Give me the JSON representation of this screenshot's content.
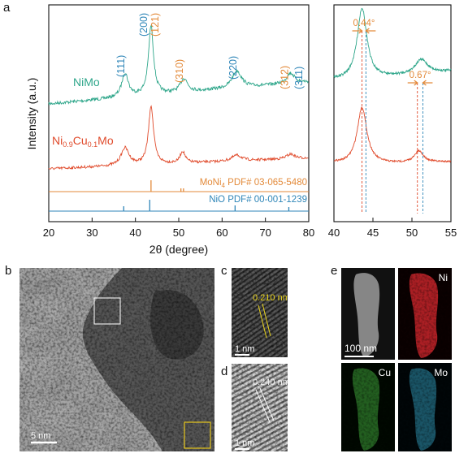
{
  "figure": {
    "panels": {
      "a": "a",
      "b": "b",
      "c": "c",
      "d": "d",
      "e": "e"
    }
  },
  "chart_data": [
    {
      "type": "line",
      "panel": "a",
      "xlabel": "2θ (degree)",
      "ylabel": "Intensity (a.u.)",
      "xlim": [
        20,
        80
      ],
      "xticks": [
        20,
        30,
        40,
        50,
        60,
        70,
        80
      ],
      "series": [
        {
          "name": "NiMo",
          "color": "#2ea68a",
          "peaks_2theta": [
            37.6,
            43.6,
            51.2,
            63.4,
            75.8
          ],
          "peak_intensity_relative": [
            0.35,
            1.0,
            0.2,
            0.25,
            0.15
          ]
        },
        {
          "name": "Ni0.9Cu0.1Mo",
          "color": "#e04a2b",
          "peaks_2theta": [
            37.6,
            43.6,
            50.9,
            63.4,
            75.8
          ],
          "peak_intensity_relative": [
            0.3,
            1.0,
            0.2,
            0.1,
            0.08
          ]
        }
      ],
      "series_labels": [
        {
          "text": "NiMo",
          "color": "#2ea68a"
        },
        {
          "base": "Ni",
          "sub1": "0.9",
          "mid": "Cu",
          "sub2": "0.1",
          "end": "Mo",
          "color": "#e04a2b"
        }
      ],
      "hkl_labels": [
        {
          "text": "(111)",
          "x": 37.4,
          "color": "#2f86b8"
        },
        {
          "text": "(200)",
          "x": 42.7,
          "color": "#2f86b8"
        },
        {
          "text": "(121)",
          "x": 45.3,
          "color": "#e38a3a"
        },
        {
          "text": "(310)",
          "x": 50.9,
          "color": "#e38a3a"
        },
        {
          "text": "(220)",
          "x": 63.3,
          "color": "#2f86b8"
        },
        {
          "text": "(312)",
          "x": 75.2,
          "color": "#e38a3a"
        },
        {
          "text": "(311)",
          "x": 78.5,
          "color": "#2f86b8"
        }
      ],
      "reference_patterns": [
        {
          "name": "MoNi4 PDF# 03-065-5480",
          "label_parts": {
            "a": "MoNi",
            "sub": "4",
            "b": " PDF# 03-065-5480"
          },
          "color": "#e38a3a",
          "lines": [
            43.6,
            50.5,
            51.1
          ]
        },
        {
          "name": "NiO PDF# 00-001-1239",
          "color": "#2f86b8",
          "lines": [
            37.3,
            43.3,
            63.0,
            75.4
          ]
        }
      ]
    },
    {
      "type": "line",
      "panel": "a-zoom",
      "xlabel": "",
      "ylabel": "",
      "xlim": [
        40,
        55
      ],
      "xticks": [
        40,
        45,
        50,
        55
      ],
      "annotations": [
        {
          "text": "0.44°",
          "x_from": 43.6,
          "x_to": 44.1,
          "color": "#e38a3a"
        },
        {
          "text": "0.67°",
          "x_from": 50.7,
          "x_to": 51.4,
          "color": "#e38a3a"
        }
      ]
    }
  ],
  "tem": {
    "b_scale": "5 nm",
    "c_scale": "1 nm",
    "c_dspacing": "0.210 nm",
    "d_scale": "1 nm",
    "d_dspacing": "0.240 nm",
    "e_scale": "100 nm",
    "e_maps": [
      {
        "label": "Ni",
        "color": "#c8252a"
      },
      {
        "label": "Cu",
        "color": "#3fa83a"
      },
      {
        "label": "Mo",
        "color": "#2b8aa6"
      }
    ]
  }
}
